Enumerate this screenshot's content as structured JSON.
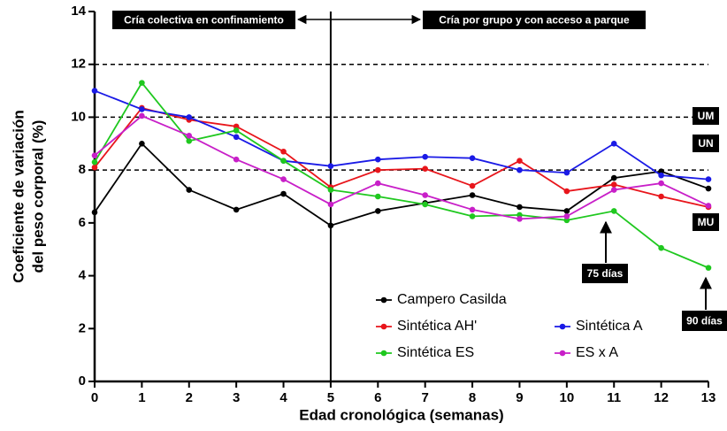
{
  "chart_data": {
    "type": "line",
    "x_label": "Edad cronológica (semanas)",
    "y_label": [
      "Coeficiente de variación",
      "del peso corporal (%)"
    ],
    "x": [
      0,
      1,
      2,
      3,
      4,
      5,
      6,
      7,
      8,
      9,
      10,
      11,
      12,
      13
    ],
    "xlim": [
      0,
      13
    ],
    "xticks": [
      0,
      1,
      2,
      3,
      4,
      5,
      6,
      7,
      8,
      9,
      10,
      11,
      12,
      13
    ],
    "ylim": [
      0,
      14
    ],
    "yticks": [
      0,
      2,
      4,
      6,
      8,
      10,
      12,
      14
    ],
    "hlines": [
      8,
      10,
      12
    ],
    "vline": 5,
    "series": [
      {
        "name": "Campero Casilda",
        "color": "#000000",
        "values": [
          6.4,
          9.0,
          7.25,
          6.5,
          7.1,
          5.9,
          6.45,
          6.75,
          7.05,
          6.6,
          6.45,
          7.7,
          7.95,
          7.3
        ]
      },
      {
        "name": "Sintética AH'",
        "color": "#e8151b",
        "values": [
          8.1,
          10.35,
          9.9,
          9.65,
          8.7,
          7.35,
          8.0,
          8.05,
          7.4,
          8.35,
          7.2,
          7.45,
          7.0,
          6.6
        ]
      },
      {
        "name": "Sintética A",
        "color": "#1a1ae6",
        "values": [
          11.0,
          10.3,
          10.0,
          9.25,
          8.35,
          8.15,
          8.4,
          8.5,
          8.45,
          8.0,
          7.9,
          9.0,
          7.8,
          7.65
        ]
      },
      {
        "name": "Sintética ES",
        "color": "#1fc81f",
        "values": [
          8.3,
          11.3,
          9.1,
          9.5,
          8.35,
          7.25,
          7.0,
          6.7,
          6.25,
          6.3,
          6.1,
          6.45,
          5.05,
          4.3
        ]
      },
      {
        "name": "ES x A",
        "color": "#c81fc8",
        "values": [
          8.55,
          10.05,
          9.3,
          8.4,
          7.65,
          6.7,
          7.5,
          7.05,
          6.5,
          6.15,
          6.25,
          7.25,
          7.5,
          6.65
        ]
      }
    ],
    "annotations": [
      "Cría colectiva en confinamiento",
      "Cría por grupo y con acceso a parque",
      "UM",
      "UN",
      "MU",
      "75 días",
      "90 días"
    ]
  }
}
